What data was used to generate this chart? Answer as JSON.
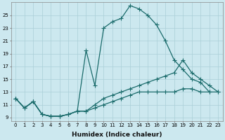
{
  "xlabel": "Humidex (Indice chaleur)",
  "ylabel": "",
  "bg_color": "#cce8ef",
  "line_color": "#1a6b6b",
  "grid_color": "#aacfd8",
  "xlim": [
    -0.5,
    23.5
  ],
  "ylim": [
    8.5,
    27.0
  ],
  "xticks": [
    0,
    1,
    2,
    3,
    4,
    5,
    6,
    7,
    8,
    9,
    10,
    11,
    12,
    13,
    14,
    15,
    16,
    17,
    18,
    19,
    20,
    21,
    22,
    23
  ],
  "yticks": [
    9,
    11,
    13,
    15,
    17,
    19,
    21,
    23,
    25
  ],
  "series1_x": [
    0,
    1,
    2,
    3,
    4,
    5,
    6,
    7,
    8,
    9,
    10,
    11,
    12,
    13,
    14,
    15,
    16,
    17,
    18,
    19,
    20,
    21,
    22,
    23
  ],
  "series1_y": [
    12.0,
    10.5,
    11.5,
    9.5,
    9.2,
    9.2,
    9.5,
    10.0,
    19.5,
    14.0,
    23.0,
    24.0,
    24.5,
    26.5,
    26.0,
    25.0,
    23.5,
    21.0,
    18.0,
    16.5,
    15.0,
    14.5,
    13.0,
    null
  ],
  "series2_x": [
    0,
    1,
    2,
    3,
    4,
    5,
    6,
    7,
    8,
    9,
    10,
    11,
    12,
    13,
    14,
    15,
    16,
    17,
    18,
    19,
    20,
    21,
    22,
    23
  ],
  "series2_y": [
    12.0,
    10.5,
    11.5,
    9.5,
    9.2,
    9.2,
    9.5,
    10.0,
    10.0,
    11.0,
    12.0,
    12.5,
    13.0,
    13.5,
    14.0,
    14.5,
    15.0,
    15.5,
    16.0,
    18.0,
    16.0,
    15.0,
    14.0,
    13.0
  ],
  "series3_x": [
    0,
    1,
    2,
    3,
    4,
    5,
    6,
    7,
    8,
    9,
    10,
    11,
    12,
    13,
    14,
    15,
    16,
    17,
    18,
    19,
    20,
    21,
    22,
    23
  ],
  "series3_y": [
    12.0,
    10.5,
    11.5,
    9.5,
    9.2,
    9.2,
    9.5,
    10.0,
    10.0,
    10.5,
    11.0,
    11.5,
    12.0,
    12.5,
    13.0,
    13.0,
    13.0,
    13.0,
    13.0,
    13.5,
    13.5,
    13.0,
    13.0,
    13.0
  ],
  "marker": "+",
  "marker_size": 3,
  "line_width": 0.9,
  "tick_fontsize": 5.0,
  "xlabel_fontsize": 6.5
}
